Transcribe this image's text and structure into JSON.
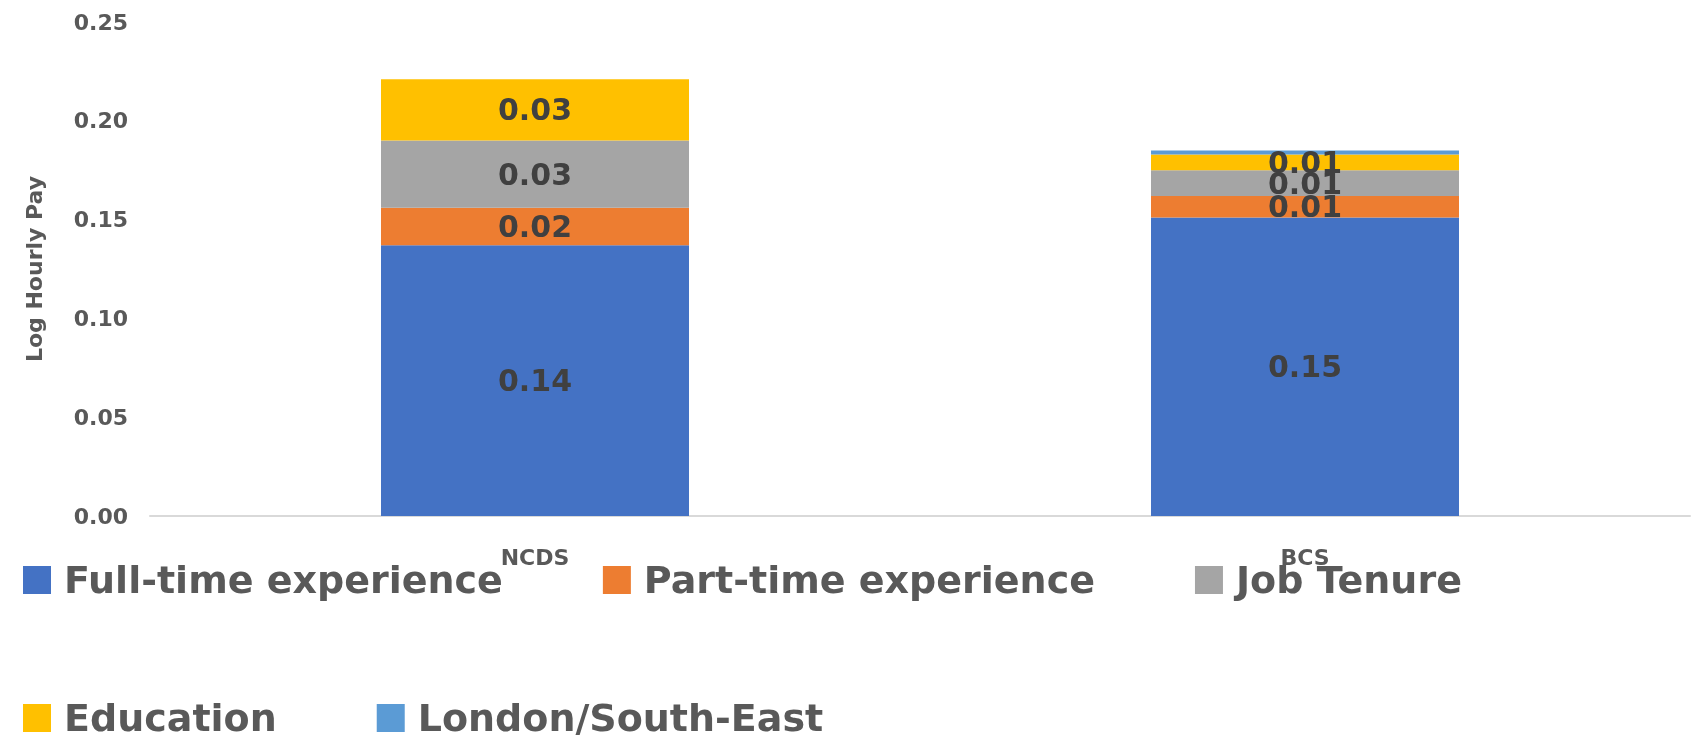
{
  "chart_data": {
    "type": "bar",
    "stacked": true,
    "ylabel": "Log Hourly Pay",
    "categories": [
      "NCDS",
      "BCS"
    ],
    "series": [
      {
        "name": "Full-time experience",
        "color": "#4472c4",
        "values": [
          0.137,
          0.151
        ],
        "value_labels": [
          "0.14",
          "0.15"
        ]
      },
      {
        "name": "Part-time experience",
        "color": "#ed7d31",
        "values": [
          0.019,
          0.011
        ],
        "value_labels": [
          "0.02",
          "0.01"
        ]
      },
      {
        "name": "Job Tenure",
        "color": "#a5a5a5",
        "values": [
          0.034,
          0.013
        ],
        "value_labels": [
          "0.03",
          "0.01"
        ]
      },
      {
        "name": "Education",
        "color": "#ffc000",
        "values": [
          0.031,
          0.008
        ],
        "value_labels": [
          "0.03",
          "0.01"
        ]
      },
      {
        "name": "London/South-East",
        "color": "#5b9bd5",
        "values": [
          null,
          0.002
        ],
        "value_labels": [
          null,
          null
        ]
      }
    ],
    "ylim": [
      0,
      0.25
    ],
    "yticks": [
      {
        "value": 0,
        "label": "0.00"
      },
      {
        "value": 0.05,
        "label": "0.05"
      },
      {
        "value": 0.1,
        "label": "0.10"
      },
      {
        "value": 0.15,
        "label": "0.15"
      },
      {
        "value": 0.2,
        "label": "0.20"
      },
      {
        "value": 0.25,
        "label": "0.25"
      }
    ],
    "grid": false,
    "legend": "bottom"
  }
}
